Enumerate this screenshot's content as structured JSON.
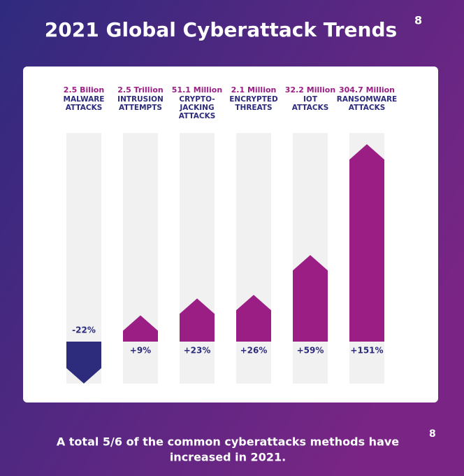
{
  "chart_data": {
    "type": "bar",
    "title": "2021 Global Cyberattack Trends",
    "title_ref": "8",
    "amounts": [
      "2.5 Bilion",
      "2.5 Trillion",
      "51.1 Million",
      "2.1 Million",
      "32.2 Million",
      "304.7 Million"
    ],
    "categories": [
      "MALWARE ATTACKS",
      "INTRUSION ATTEMPTS",
      "CRYPTO-JACKING ATTACKS",
      "ENCRYPTED THREATS",
      "IOT ATTACKS",
      "RANSOMWARE ATTACKS"
    ],
    "values": [
      -22,
      9,
      23,
      26,
      59,
      151
    ],
    "value_labels": [
      "-22%",
      "+9%",
      "+23%",
      "+26%",
      "+59%",
      "+151%"
    ],
    "color": "#9a1e84",
    "negative_color": "#2d2b7c",
    "footnote": [
      "A total 5/6 of the common cyberattacks methods have",
      "increased in 2021."
    ],
    "footnote_ref": "8"
  }
}
